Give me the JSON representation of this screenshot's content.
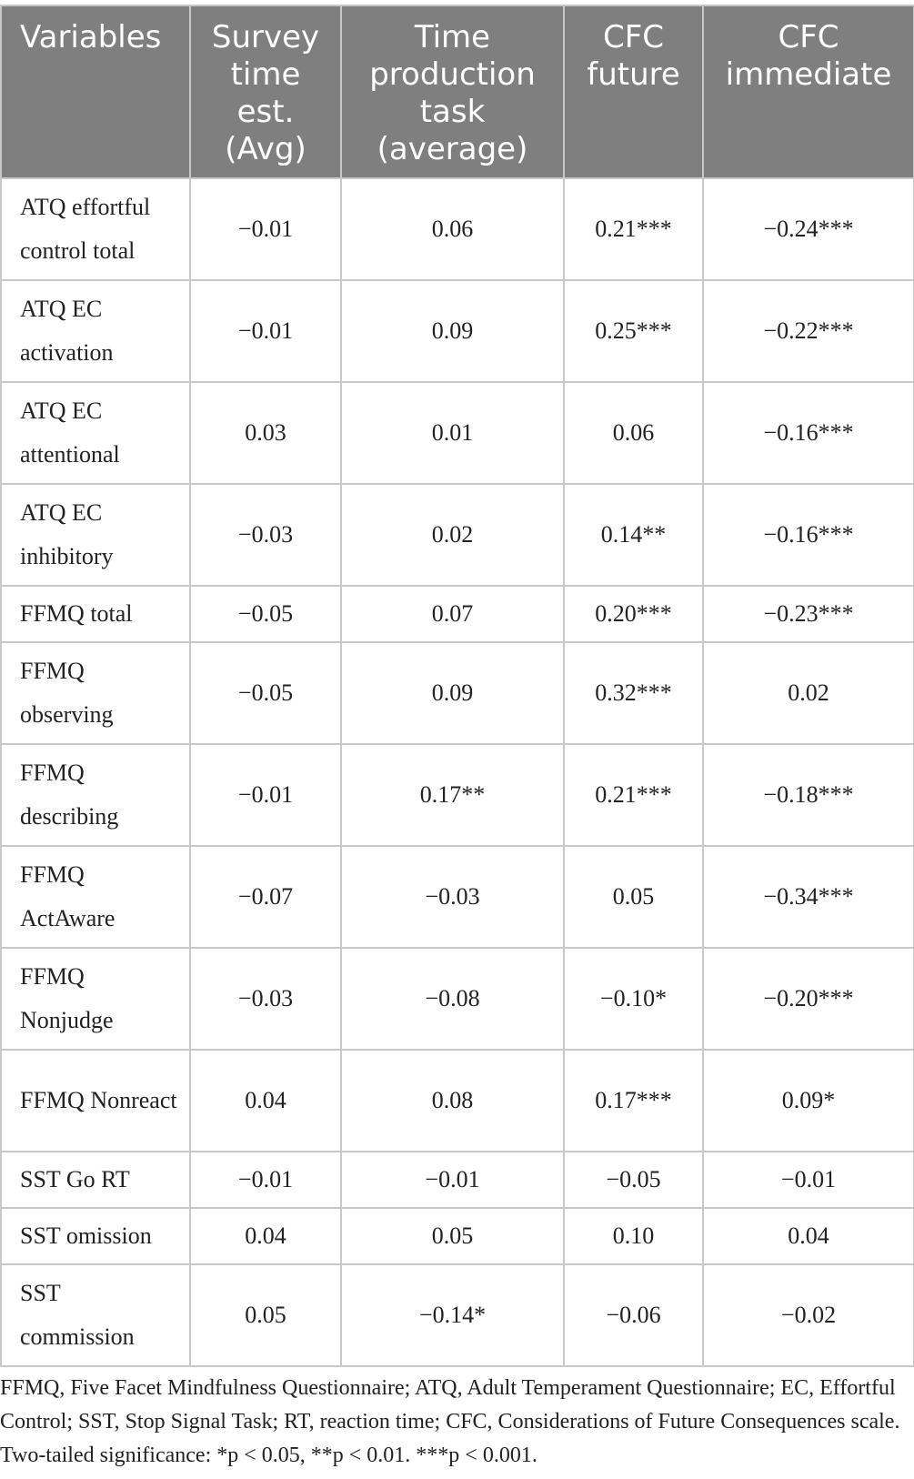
{
  "table": {
    "headers": [
      "Variables",
      "Survey time est. (Avg)",
      "Time production task (average)",
      "CFC future",
      "CFC immediate"
    ],
    "rows": [
      {
        "variable": "ATQ effortful control total",
        "lines": 2,
        "values": [
          "−0.01",
          "0.06",
          "0.21***",
          "−0.24***"
        ]
      },
      {
        "variable": "ATQ EC activation",
        "lines": 2,
        "values": [
          "−0.01",
          "0.09",
          "0.25***",
          "−0.22***"
        ]
      },
      {
        "variable": "ATQ EC attentional",
        "lines": 2,
        "values": [
          "0.03",
          "0.01",
          "0.06",
          "−0.16***"
        ]
      },
      {
        "variable": "ATQ EC inhibitory",
        "lines": 2,
        "values": [
          "−0.03",
          "0.02",
          "0.14**",
          "−0.16***"
        ]
      },
      {
        "variable": "FFMQ total",
        "lines": 1,
        "values": [
          "−0.05",
          "0.07",
          "0.20***",
          "−0.23***"
        ]
      },
      {
        "variable": "FFMQ observing",
        "lines": 2,
        "values": [
          "−0.05",
          "0.09",
          "0.32***",
          "0.02"
        ]
      },
      {
        "variable": "FFMQ describing",
        "lines": 2,
        "values": [
          "−0.01",
          "0.17**",
          "0.21***",
          "−0.18***"
        ]
      },
      {
        "variable": "FFMQ ActAware",
        "lines": 2,
        "values": [
          "−0.07",
          "−0.03",
          "0.05",
          "−0.34***"
        ]
      },
      {
        "variable": "FFMQ Nonjudge",
        "lines": 2,
        "values": [
          "−0.03",
          "−0.08",
          "−0.10*",
          "−0.20***"
        ]
      },
      {
        "variable": "FFMQ Nonreact",
        "lines": 2,
        "values": [
          "0.04",
          "0.08",
          "0.17***",
          "0.09*"
        ]
      },
      {
        "variable": "SST Go RT",
        "lines": 1,
        "values": [
          "−0.01",
          "−0.01",
          "−0.05",
          "−0.01"
        ]
      },
      {
        "variable": "SST omission",
        "lines": 1,
        "values": [
          "0.04",
          "0.05",
          "0.10",
          "0.04"
        ]
      },
      {
        "variable": "SST commission",
        "lines": 2,
        "values": [
          "0.05",
          "−0.14*",
          "−0.06",
          "−0.02"
        ]
      }
    ]
  },
  "footnote": "FFMQ, Five Facet Mindfulness Questionnaire; ATQ, Adult Temperament Questionnaire; EC, Effortful Control; SST, Stop Signal Task; RT, reaction time; CFC, Considerations of Future Consequences scale. Two-tailed significance: *p < 0.05, **p < 0.01. ***p < 0.001.",
  "colors": {
    "header_bg": "#7f7f7f",
    "header_text": "#ffffff",
    "border": "#c8c8c8"
  }
}
